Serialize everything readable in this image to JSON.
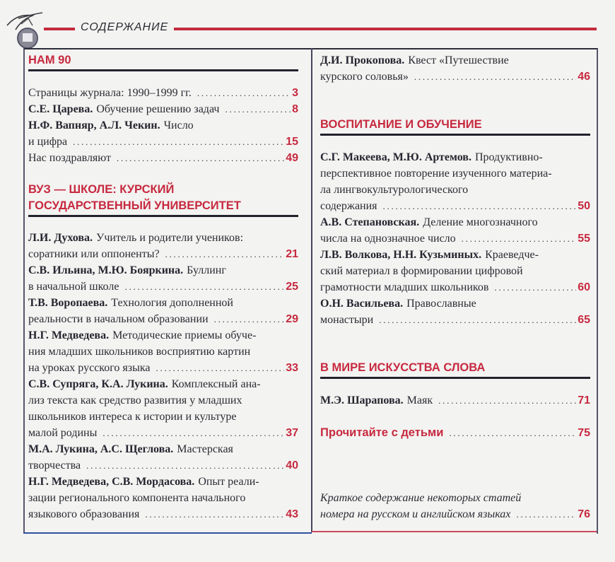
{
  "header": {
    "title": "СОДЕРЖАНИЕ",
    "logo_text": "НШ"
  },
  "colors": {
    "accent": "#c7293f",
    "text": "#2b2a33",
    "rule": "#22222e"
  },
  "left": [
    {
      "type": "header",
      "lines": [
        "НАМ 90"
      ]
    },
    {
      "type": "entry",
      "authors": "",
      "lines": [
        "Страницы журнала: 1990–1999 гг."
      ],
      "page": "3"
    },
    {
      "type": "entry",
      "authors": "С.Е. Царева.",
      "lines": [
        "Обучение решению задач"
      ],
      "page": "8"
    },
    {
      "type": "entry",
      "authors": "Н.Ф. Вапняр, А.Л. Чекин.",
      "lines": [
        "Число",
        "и цифра"
      ],
      "page": "15"
    },
    {
      "type": "entry",
      "authors": "",
      "lines": [
        "Нас поздравляют"
      ],
      "page": "49"
    },
    {
      "type": "header",
      "lines": [
        "ВУЗ — ШКОЛЕ: КУРСКИЙ",
        "ГОСУДАРСТВЕННЫЙ УНИВЕРСИТЕТ"
      ]
    },
    {
      "type": "entry",
      "authors": "Л.И. Духова.",
      "lines": [
        "Учитель и родители учеников:",
        "соратники или оппоненты?"
      ],
      "page": "21"
    },
    {
      "type": "entry",
      "authors": "С.В. Ильина, М.Ю. Бояркина.",
      "lines": [
        "Буллинг",
        "в начальной школе"
      ],
      "page": "25"
    },
    {
      "type": "entry",
      "authors": "Т.В. Воропаева.",
      "lines": [
        "Технология дополненной",
        "реальности в начальном образовании"
      ],
      "page": "29"
    },
    {
      "type": "entry",
      "authors": "Н.Г. Медведева.",
      "lines": [
        "Методические приемы обуче-",
        "ния младших школьников восприятию картин",
        "на уроках русского языка"
      ],
      "page": "33"
    },
    {
      "type": "entry",
      "authors": "С.В. Супряга, К.А. Лукина.",
      "lines": [
        "Комплексный ана-",
        "лиз текста как средство развития у младших",
        "школьников интереса к истории и культуре",
        "малой родины"
      ],
      "page": "37"
    },
    {
      "type": "entry",
      "authors": "М.А. Лукина, А.С. Щеглова.",
      "lines": [
        "Мастерская",
        "творчества"
      ],
      "page": "40"
    },
    {
      "type": "entry",
      "authors": "Н.Г. Медведева, С.В. Мордасова.",
      "lines": [
        "Опыт реали-",
        "зации регионального компонента начального",
        "языкового образования"
      ],
      "page": "43"
    }
  ],
  "right": [
    {
      "type": "entry",
      "authors": "Д.И. Прокопова.",
      "lines": [
        "Квест «Путешествие",
        "курского соловья»"
      ],
      "page": "46"
    },
    {
      "type": "header",
      "lines": [
        "ВОСПИТАНИЕ И ОБУЧЕНИЕ"
      ]
    },
    {
      "type": "entry",
      "authors": "С.Г. Макеева, М.Ю. Артемов.",
      "lines": [
        "Продуктивно-",
        "перспективное повторение изученного материа-",
        "ла лингвокультурологического",
        "содержания"
      ],
      "page": "50"
    },
    {
      "type": "entry",
      "authors": "А.В. Степановская.",
      "lines": [
        "Деление многозначного",
        "числа на однозначное число"
      ],
      "page": "55"
    },
    {
      "type": "entry",
      "authors": "Л.В. Волкова, Н.Н. Кузьминых.",
      "lines": [
        "Краеведче-",
        "ский материал в формировании цифровой",
        "грамотности младших школьников"
      ],
      "page": "60"
    },
    {
      "type": "entry",
      "authors": "О.Н. Васильева.",
      "lines": [
        "Православные",
        "монастыри"
      ],
      "page": "65"
    },
    {
      "type": "header",
      "lines": [
        "В МИРЕ ИСКУССТВА СЛОВА"
      ]
    },
    {
      "type": "entry",
      "authors": "М.Э. Шарапова.",
      "lines": [
        "Маяк"
      ],
      "page": "71"
    },
    {
      "type": "entry",
      "style": "red",
      "authors": "",
      "lines": [
        "Прочитайте с детьми"
      ],
      "page": "75"
    },
    {
      "type": "entry",
      "style": "italic",
      "authors": "",
      "lines": [
        "Краткое содержание некоторых статей",
        "номера на русском и английском языках"
      ],
      "page": "76"
    }
  ]
}
